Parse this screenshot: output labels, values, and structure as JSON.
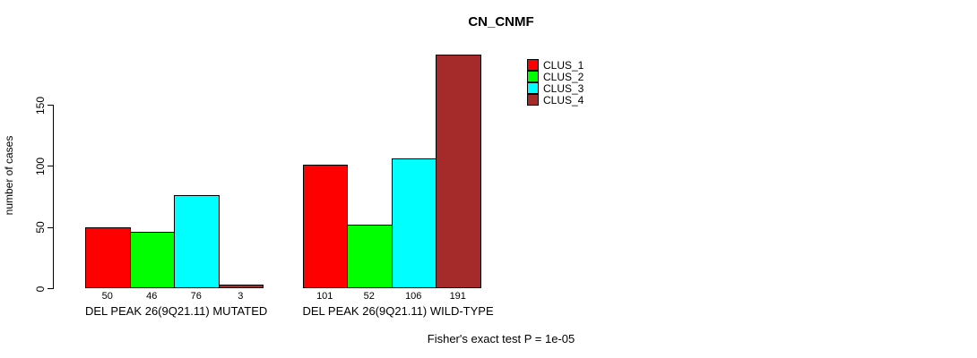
{
  "header": {
    "title": "CN_CNMF"
  },
  "footer": {
    "text": "Fisher's exact test P = 1e-05"
  },
  "y_axis": {
    "label": "number of cases"
  },
  "legend": {
    "items": [
      {
        "label": "CLUS_1",
        "color": "#FF0000"
      },
      {
        "label": "CLUS_2",
        "color": "#00FF00"
      },
      {
        "label": "CLUS_3",
        "color": "#00FFFF"
      },
      {
        "label": "CLUS_4",
        "color": "#A52A2A"
      }
    ]
  },
  "chart_data": {
    "type": "bar",
    "title": "CN_CNMF",
    "ylabel": "number of cases",
    "xlabel": "",
    "ylim": [
      0,
      150
    ],
    "yticks": [
      0,
      50,
      100,
      150
    ],
    "grid": false,
    "legend_position": "top-right",
    "categories": [
      "DEL PEAK 26(9Q21.11) MUTATED",
      "DEL PEAK 26(9Q21.11) WILD-TYPE"
    ],
    "series": [
      {
        "name": "CLUS_1",
        "color": "#FF0000",
        "values": [
          50,
          101
        ]
      },
      {
        "name": "CLUS_2",
        "color": "#00FF00",
        "values": [
          46,
          52
        ]
      },
      {
        "name": "CLUS_3",
        "color": "#00FFFF",
        "values": [
          76,
          106
        ]
      },
      {
        "name": "CLUS_4",
        "color": "#A52A2A",
        "values": [
          3,
          191
        ]
      }
    ],
    "bar_value_labels": [
      [
        50,
        46,
        76,
        3
      ],
      [
        101,
        52,
        106,
        191
      ]
    ],
    "annotation": "Fisher's exact test P = 1e-05"
  }
}
